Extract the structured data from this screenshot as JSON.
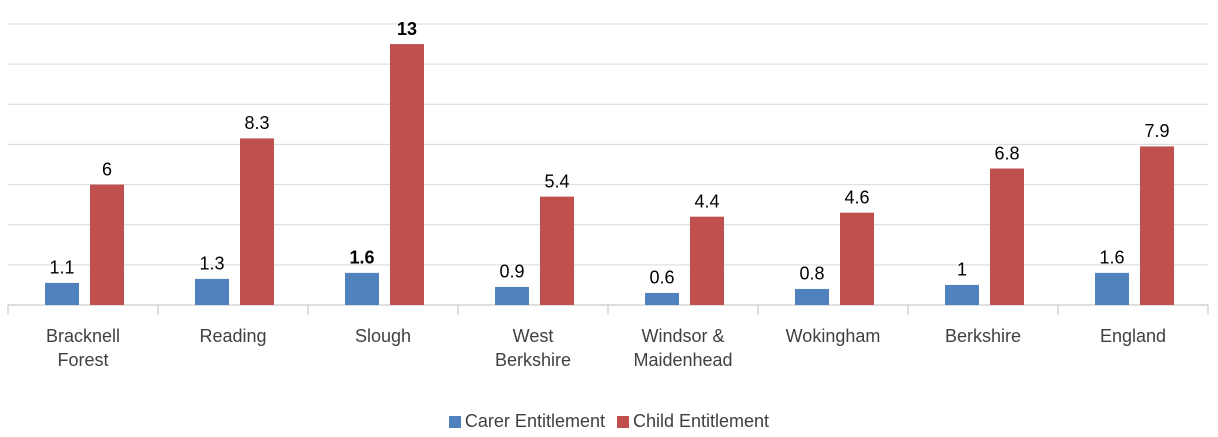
{
  "chart_data": {
    "type": "bar",
    "categories": [
      "Bracknell Forest",
      "Reading",
      "Slough",
      "West Berkshire",
      "Windsor & Maidenhead",
      "Wokingham",
      "Berkshire",
      "England"
    ],
    "series": [
      {
        "name": "Carer Entitlement",
        "color": "#4f81bd",
        "values": [
          1.1,
          1.3,
          1.6,
          0.9,
          0.6,
          0.8,
          1,
          1.6
        ],
        "label_colors": [
          "#000000",
          "#000000",
          "#ff0000",
          "#000000",
          "#000000",
          "#000000",
          "#000000",
          "#000000"
        ]
      },
      {
        "name": "Child Entitlement",
        "color": "#c0504d",
        "values": [
          6,
          8.3,
          13,
          5.4,
          4.4,
          4.6,
          6.8,
          7.9
        ],
        "label_colors": [
          "#000000",
          "#000000",
          "#ff0000",
          "#000000",
          "#000000",
          "#000000",
          "#000000",
          "#000000"
        ]
      }
    ],
    "ylim": [
      0,
      14
    ],
    "yticks": [
      0,
      2,
      4,
      6,
      8,
      10,
      12,
      14
    ],
    "grid": true,
    "legend": "bottom"
  }
}
